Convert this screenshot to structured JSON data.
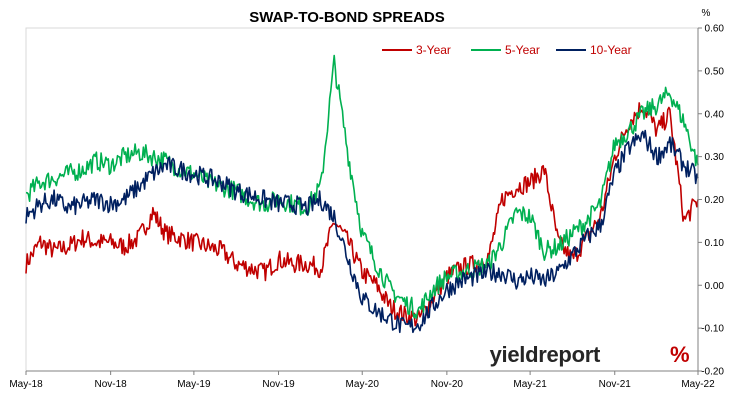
{
  "chart_data": {
    "type": "line",
    "title": "SWAP-TO-BOND SPREADS",
    "ylabel": "%",
    "ylim": [
      -0.2,
      0.6
    ],
    "yticks": [
      "-0.20",
      "-0.10",
      "0.00",
      "0.10",
      "0.20",
      "0.30",
      "0.40",
      "0.50",
      "0.60"
    ],
    "xlim": [
      "2018-05-01",
      "2022-05-01"
    ],
    "xticks": [
      {
        "date": "2018-05-01",
        "label": "May-18"
      },
      {
        "date": "2018-11-01",
        "label": "Nov-18"
      },
      {
        "date": "2019-05-01",
        "label": "May-19"
      },
      {
        "date": "2019-11-01",
        "label": "Nov-19"
      },
      {
        "date": "2020-05-01",
        "label": "May-20"
      },
      {
        "date": "2020-11-01",
        "label": "Nov-20"
      },
      {
        "date": "2021-05-01",
        "label": "May-21"
      },
      {
        "date": "2021-11-01",
        "label": "Nov-21"
      },
      {
        "date": "2022-05-01",
        "label": "May-22"
      }
    ],
    "grid": false,
    "legend_position": "top-right",
    "watermark": {
      "text_main": "yieldreport",
      "text_pct": "%"
    },
    "series": [
      {
        "name": "3-Year",
        "color": "#c00000",
        "x": [
          "2018-05-01",
          "2018-06-01",
          "2018-07-01",
          "2018-08-01",
          "2018-09-01",
          "2018-10-01",
          "2018-11-01",
          "2018-12-01",
          "2019-01-01",
          "2019-02-01",
          "2019-03-01",
          "2019-04-01",
          "2019-05-01",
          "2019-06-01",
          "2019-07-01",
          "2019-08-01",
          "2019-09-01",
          "2019-10-01",
          "2019-11-01",
          "2019-12-01",
          "2020-01-01",
          "2020-02-01",
          "2020-03-01",
          "2020-04-01",
          "2020-05-01",
          "2020-06-01",
          "2020-07-01",
          "2020-08-01",
          "2020-09-01",
          "2020-10-01",
          "2020-11-01",
          "2020-12-01",
          "2021-01-01",
          "2021-02-01",
          "2021-03-01",
          "2021-04-01",
          "2021-05-01",
          "2021-06-01",
          "2021-07-01",
          "2021-08-01",
          "2021-09-01",
          "2021-10-01",
          "2021-11-01",
          "2021-12-01",
          "2022-01-01",
          "2022-02-01",
          "2022-03-01",
          "2022-04-01",
          "2022-05-01"
        ],
        "values": [
          0.05,
          0.1,
          0.08,
          0.09,
          0.11,
          0.1,
          0.1,
          0.09,
          0.11,
          0.17,
          0.12,
          0.11,
          0.1,
          0.09,
          0.08,
          0.05,
          0.04,
          0.03,
          0.06,
          0.05,
          0.05,
          0.04,
          0.15,
          0.1,
          0.03,
          0.0,
          -0.05,
          -0.07,
          -0.08,
          -0.03,
          0.02,
          0.04,
          0.05,
          0.07,
          0.2,
          0.23,
          0.24,
          0.27,
          0.1,
          0.06,
          0.11,
          0.16,
          0.3,
          0.38,
          0.42,
          0.36,
          0.4,
          0.15,
          0.2
        ]
      },
      {
        "name": "5-Year",
        "color": "#00b050",
        "x": [
          "2018-05-01",
          "2018-06-01",
          "2018-07-01",
          "2018-08-01",
          "2018-09-01",
          "2018-10-01",
          "2018-11-01",
          "2018-12-01",
          "2019-01-01",
          "2019-02-01",
          "2019-03-01",
          "2019-04-01",
          "2019-05-01",
          "2019-06-01",
          "2019-07-01",
          "2019-08-01",
          "2019-09-01",
          "2019-10-01",
          "2019-11-01",
          "2019-12-01",
          "2020-01-01",
          "2020-02-01",
          "2020-03-01",
          "2020-04-01",
          "2020-05-01",
          "2020-06-01",
          "2020-07-01",
          "2020-08-01",
          "2020-09-01",
          "2020-10-01",
          "2020-11-01",
          "2020-12-01",
          "2021-01-01",
          "2021-02-01",
          "2021-03-01",
          "2021-04-01",
          "2021-05-01",
          "2021-06-01",
          "2021-07-01",
          "2021-08-01",
          "2021-09-01",
          "2021-10-01",
          "2021-11-01",
          "2021-12-01",
          "2022-01-01",
          "2022-02-01",
          "2022-03-01",
          "2022-04-01",
          "2022-05-01"
        ],
        "values": [
          0.21,
          0.24,
          0.25,
          0.26,
          0.27,
          0.29,
          0.28,
          0.3,
          0.31,
          0.3,
          0.29,
          0.27,
          0.26,
          0.24,
          0.23,
          0.22,
          0.2,
          0.19,
          0.2,
          0.19,
          0.18,
          0.23,
          0.52,
          0.3,
          0.12,
          0.05,
          -0.01,
          -0.04,
          -0.06,
          -0.01,
          0.02,
          0.03,
          0.04,
          0.05,
          0.1,
          0.17,
          0.16,
          0.08,
          0.09,
          0.12,
          0.15,
          0.19,
          0.33,
          0.36,
          0.4,
          0.42,
          0.45,
          0.38,
          0.28
        ]
      },
      {
        "name": "10-Year",
        "color": "#002060",
        "x": [
          "2018-05-01",
          "2018-06-01",
          "2018-07-01",
          "2018-08-01",
          "2018-09-01",
          "2018-10-01",
          "2018-11-01",
          "2018-12-01",
          "2019-01-01",
          "2019-02-01",
          "2019-03-01",
          "2019-04-01",
          "2019-05-01",
          "2019-06-01",
          "2019-07-01",
          "2019-08-01",
          "2019-09-01",
          "2019-10-01",
          "2019-11-01",
          "2019-12-01",
          "2020-01-01",
          "2020-02-01",
          "2020-03-01",
          "2020-04-01",
          "2020-05-01",
          "2020-06-01",
          "2020-07-01",
          "2020-08-01",
          "2020-09-01",
          "2020-10-01",
          "2020-11-01",
          "2020-12-01",
          "2021-01-01",
          "2021-02-01",
          "2021-03-01",
          "2021-04-01",
          "2021-05-01",
          "2021-06-01",
          "2021-07-01",
          "2021-08-01",
          "2021-09-01",
          "2021-10-01",
          "2021-11-01",
          "2021-12-01",
          "2022-01-01",
          "2022-02-01",
          "2022-03-01",
          "2022-04-01",
          "2022-05-01"
        ],
        "values": [
          0.16,
          0.19,
          0.2,
          0.18,
          0.19,
          0.2,
          0.19,
          0.2,
          0.23,
          0.26,
          0.28,
          0.27,
          0.26,
          0.25,
          0.24,
          0.22,
          0.21,
          0.2,
          0.19,
          0.19,
          0.18,
          0.2,
          0.16,
          0.06,
          -0.03,
          -0.06,
          -0.08,
          -0.1,
          -0.09,
          -0.05,
          -0.01,
          0.01,
          0.02,
          0.03,
          0.03,
          0.01,
          0.02,
          0.01,
          0.03,
          0.07,
          0.11,
          0.14,
          0.26,
          0.32,
          0.35,
          0.3,
          0.33,
          0.28,
          0.25
        ]
      }
    ]
  }
}
